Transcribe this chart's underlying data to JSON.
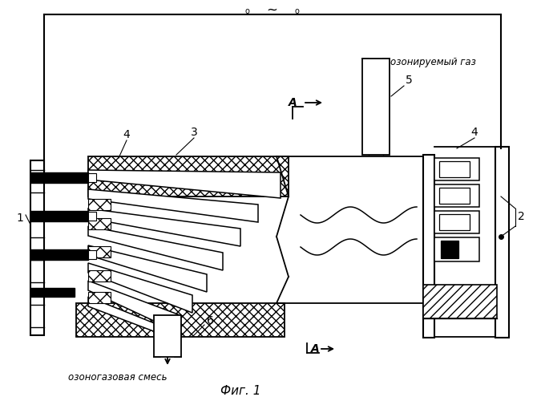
{
  "bg_color": "#ffffff",
  "fig_label": "Фиг. 1",
  "ac_text": "∼",
  "label_1": "1",
  "label_2": "2",
  "label_3": "3",
  "label_4": "4",
  "label_5": "5",
  "label_6": "6",
  "text_ozone_gas": "озонируемый газ",
  "text_ozone_mix": "озоногазовая смесь",
  "text_A": "A"
}
